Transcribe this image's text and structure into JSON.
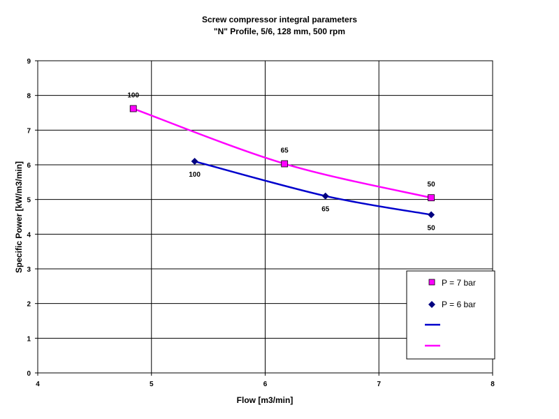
{
  "chart_data": {
    "type": "line",
    "title": "Screw compressor integral parameters",
    "subtitle": "\"N\" Profile, 5/6, 128 mm, 500 rpm",
    "xlabel": "Flow [m3/min]",
    "ylabel": "Specific Power [kW/m3/min]",
    "xlim": [
      4,
      8
    ],
    "ylim": [
      0,
      9
    ],
    "x_ticks": [
      "4",
      "5",
      "6",
      "7",
      "8"
    ],
    "y_ticks": [
      "0",
      "1",
      "2",
      "3",
      "4",
      "5",
      "6",
      "7",
      "8",
      "9"
    ],
    "grid": true,
    "legend_position": "lower-right",
    "series": [
      {
        "name": "P = 7 bar",
        "color": "#FF00FF",
        "marker": "square",
        "x": [
          4.84,
          6.17,
          7.46
        ],
        "y": [
          7.62,
          6.03,
          5.05
        ],
        "labels": [
          "100",
          "65",
          "50"
        ]
      },
      {
        "name": "P = 6 bar",
        "color": "#0000CC",
        "marker": "diamond",
        "x": [
          5.38,
          6.53,
          7.46
        ],
        "y": [
          6.1,
          5.1,
          4.56
        ],
        "labels": [
          "100",
          "65",
          "50"
        ]
      }
    ]
  }
}
